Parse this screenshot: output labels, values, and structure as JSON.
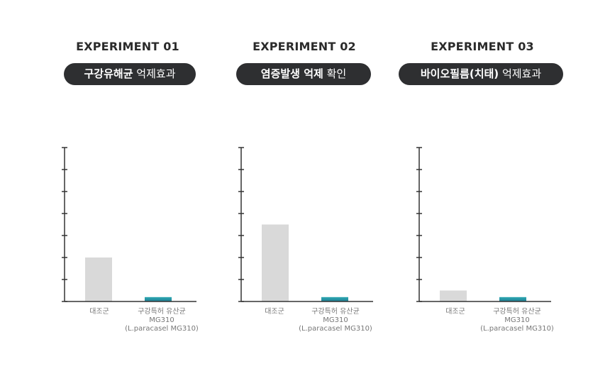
{
  "chart_data": [
    {
      "type": "bar",
      "title": "EXPERIMENT 01",
      "subtitle_bold": "구강유해균",
      "subtitle_rest": "억제효과",
      "categories": [
        "대조군",
        [
          "구강특허 유산균",
          "MG310",
          "(L.paracasel MG310)"
        ]
      ],
      "values": [
        2.0,
        0.2
      ],
      "ylim": [
        0,
        7
      ],
      "ticks": 7,
      "colors": [
        "#d9d9d9",
        "#1f7f95"
      ]
    },
    {
      "type": "bar",
      "title": "EXPERIMENT 02",
      "subtitle_bold": "염증발생 억제",
      "subtitle_rest": "확인",
      "categories": [
        "대조군",
        [
          "구강특허 유산균",
          "MG310",
          "(L.paracasel MG310)"
        ]
      ],
      "values": [
        3.5,
        0.2
      ],
      "ylim": [
        0,
        7
      ],
      "ticks": 7,
      "colors": [
        "#d9d9d9",
        "#1f7f95"
      ]
    },
    {
      "type": "bar",
      "title": "EXPERIMENT 03",
      "subtitle_bold": "바이오필름(치태)",
      "subtitle_rest": "억제효과",
      "categories": [
        "대조군",
        [
          "구강특허 유산균",
          "MG310",
          "(L.paracasel MG310)"
        ]
      ],
      "values": [
        0.5,
        0.2
      ],
      "ylim": [
        0,
        7
      ],
      "ticks": 7,
      "colors": [
        "#d9d9d9",
        "#1f7f95"
      ]
    }
  ]
}
